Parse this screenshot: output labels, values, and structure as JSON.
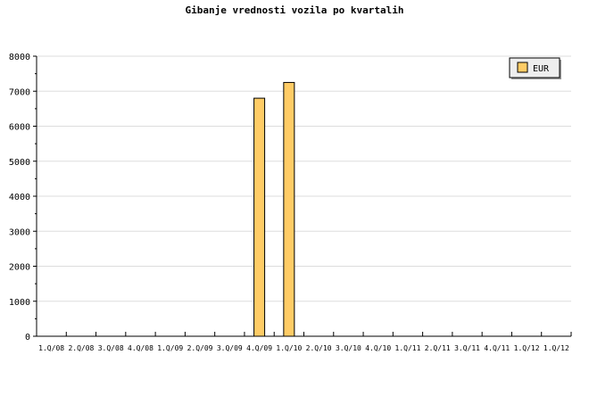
{
  "chart_data": {
    "type": "bar",
    "title": "Gibanje vrednosti vozila po kvartalih",
    "categories": [
      "1.Q/08",
      "2.Q/08",
      "3.Q/08",
      "4.Q/08",
      "1.Q/09",
      "2.Q/09",
      "3.Q/09",
      "4.Q/09",
      "1.Q/10",
      "2.Q/10",
      "3.Q/10",
      "4.Q/10",
      "1.Q/11",
      "2.Q/11",
      "3.Q/11",
      "4.Q/11",
      "1.Q/12",
      "1.Q/12"
    ],
    "series": [
      {
        "name": "EUR",
        "values": [
          0,
          0,
          0,
          0,
          0,
          0,
          0,
          6800,
          7250,
          0,
          0,
          0,
          0,
          0,
          0,
          0,
          0,
          0
        ],
        "color": "#ffcc66"
      }
    ],
    "yticks": [
      0,
      1000,
      2000,
      3000,
      4000,
      5000,
      6000,
      7000,
      8000
    ],
    "ylim": [
      0,
      8000
    ],
    "grid": true,
    "legend": "top-right"
  }
}
